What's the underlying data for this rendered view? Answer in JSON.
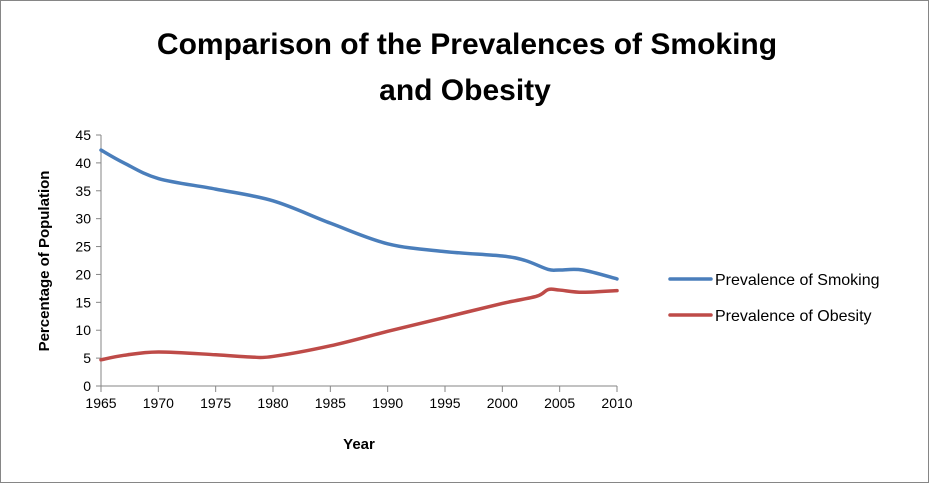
{
  "chart_data": {
    "type": "line",
    "title": "Comparison of the Prevalences of Smoking and Obesity",
    "title_lines": [
      "Comparison of the Prevalences of Smoking",
      "and Obesity"
    ],
    "xlabel": "Year",
    "ylabel": "Percentage of Population",
    "xlim": [
      1965,
      2010
    ],
    "ylim": [
      0,
      45
    ],
    "x_ticks": [
      "1965",
      "1970",
      "1975",
      "1980",
      "1985",
      "1990",
      "1995",
      "2000",
      "2005",
      "2010"
    ],
    "y_ticks": [
      "0",
      "5",
      "10",
      "15",
      "20",
      "25",
      "30",
      "35",
      "40",
      "45"
    ],
    "grid": false,
    "legend_position": "right",
    "series": [
      {
        "name": "Prevalence of Smoking",
        "color": "#4a7ebb",
        "x": [
          1965,
          1967,
          1970,
          1975,
          1980,
          1985,
          1990,
          1995,
          2000,
          2002,
          2004,
          2005,
          2007,
          2010
        ],
        "y": [
          42.3,
          40.0,
          37.2,
          35.3,
          33.2,
          29.2,
          25.5,
          24.1,
          23.3,
          22.5,
          20.9,
          20.8,
          20.8,
          19.2
        ]
      },
      {
        "name": "Prevalence of Obesity",
        "color": "#be4b48",
        "x": [
          1965,
          1967,
          1970,
          1975,
          1978,
          1980,
          1985,
          1990,
          1995,
          2000,
          2003,
          2004,
          2005,
          2007,
          2010
        ],
        "y": [
          4.7,
          5.5,
          6.1,
          5.6,
          5.2,
          5.3,
          7.2,
          9.8,
          12.3,
          14.8,
          16.1,
          17.3,
          17.2,
          16.8,
          17.1
        ]
      }
    ]
  }
}
